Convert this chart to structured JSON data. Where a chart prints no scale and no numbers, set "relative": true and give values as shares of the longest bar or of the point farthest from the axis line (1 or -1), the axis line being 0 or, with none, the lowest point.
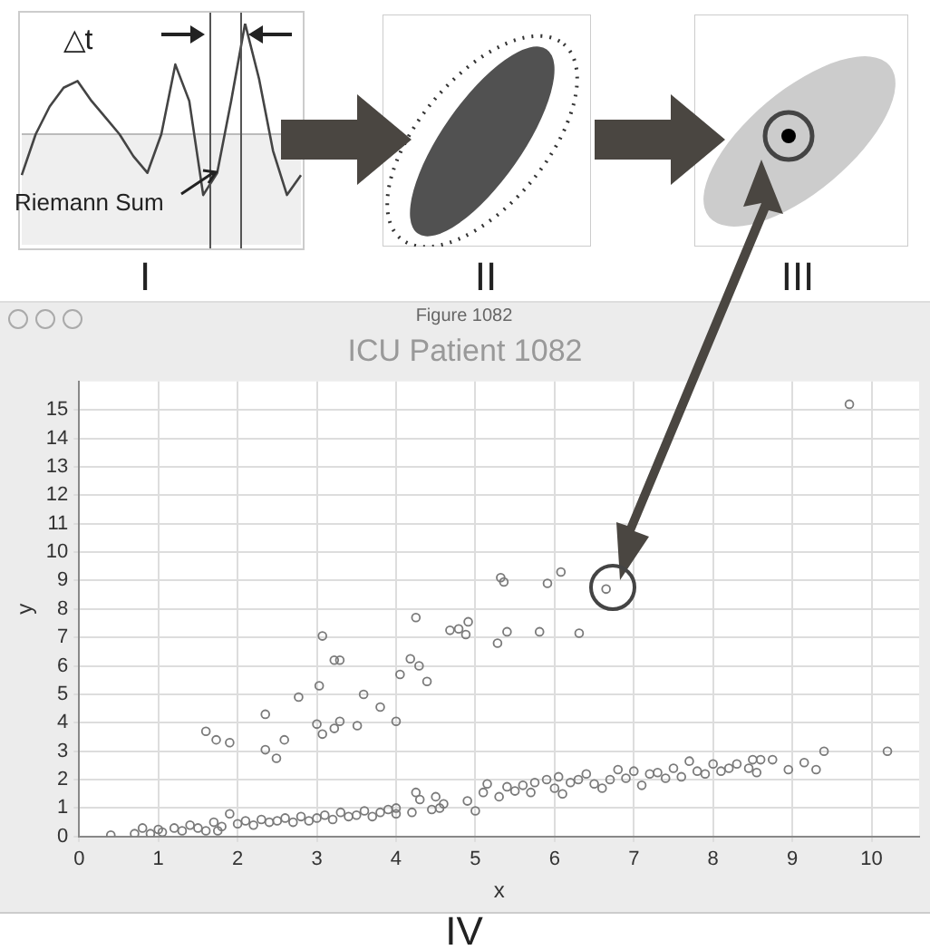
{
  "chart_data": [
    {
      "type": "line",
      "relative": true,
      "color": "#444444",
      "categories": [
        null,
        null,
        null,
        null,
        null,
        null,
        null,
        null,
        null,
        null,
        null,
        null,
        null,
        null,
        null,
        null,
        null,
        null,
        null,
        null,
        null
      ],
      "values": [
        -0.37,
        0.0,
        0.25,
        0.42,
        0.48,
        0.3,
        0.15,
        0.0,
        -0.2,
        -0.35,
        0.0,
        0.63,
        0.3,
        -0.55,
        -0.35,
        0.3,
        1.0,
        0.5,
        -0.15,
        -0.55,
        -0.37
      ],
      "annotations": [
        "△t",
        "Riemann Sum",
        "I"
      ]
    },
    {
      "type": "scatter",
      "title": "ICU Patient 1082",
      "xlabel": "x",
      "ylabel": "y",
      "xlim": [
        0,
        10.6
      ],
      "ylim": [
        0,
        16
      ],
      "xticks": [
        0,
        1,
        2,
        3,
        4,
        5,
        6,
        7,
        8,
        9,
        10
      ],
      "yticks": [
        0,
        1,
        2,
        3,
        4,
        5,
        6,
        7,
        8,
        9,
        10,
        11,
        12,
        13,
        14,
        15
      ],
      "grid": true,
      "marker": "circle",
      "legend": false,
      "annotations": [
        "II",
        "III",
        "IV",
        "Figure 1082"
      ],
      "series": [
        {
          "color": "#7a7a7a",
          "x": [
            1.6,
            1.73,
            1.9,
            2.35,
            2.35,
            2.49,
            2.59,
            2.77,
            3.0,
            3.03,
            3.07,
            3.07,
            3.22,
            3.29,
            3.22,
            3.29,
            3.51,
            3.59,
            3.8,
            4.0,
            4.05,
            4.18,
            4.29,
            4.39,
            4.25,
            4.68,
            4.79,
            4.91,
            4.88,
            5.28,
            5.4,
            5.81,
            6.31,
            5.32,
            5.36,
            5.91,
            6.08,
            6.65,
            9.72,
            0.4,
            0.7,
            0.8,
            0.9,
            1.0,
            1.05,
            1.2,
            1.3,
            1.4,
            1.5,
            1.6,
            1.7,
            1.75,
            1.8,
            1.9,
            2.0,
            2.1,
            2.2,
            2.3,
            2.4,
            2.5,
            2.6,
            2.7,
            2.8,
            2.9,
            3.0,
            3.1,
            3.2,
            3.3,
            3.4,
            3.5,
            3.6,
            3.7,
            3.8,
            3.9,
            4.0,
            4.0,
            4.2,
            4.25,
            4.3,
            4.45,
            4.5,
            4.55,
            4.6,
            4.9,
            5.0,
            5.1,
            5.15,
            5.3,
            5.4,
            5.5,
            5.6,
            5.7,
            5.75,
            5.9,
            6.0,
            6.05,
            6.1,
            6.2,
            6.3,
            6.4,
            6.5,
            6.6,
            6.7,
            6.8,
            6.9,
            7.0,
            7.1,
            7.2,
            7.3,
            7.4,
            7.5,
            7.6,
            7.7,
            7.8,
            7.9,
            8.0,
            8.1,
            8.2,
            8.3,
            8.45,
            8.5,
            8.55,
            8.6,
            8.75,
            8.95,
            9.15,
            9.3,
            9.4,
            10.2
          ],
          "values": [
            3.7,
            3.4,
            3.3,
            4.3,
            3.05,
            2.75,
            3.4,
            4.9,
            3.95,
            5.3,
            3.6,
            7.05,
            6.2,
            6.2,
            3.8,
            4.05,
            3.9,
            5.0,
            4.55,
            4.05,
            5.7,
            6.25,
            6.0,
            5.45,
            7.7,
            7.25,
            7.3,
            7.55,
            7.1,
            6.8,
            7.2,
            7.2,
            7.15,
            9.1,
            8.95,
            8.9,
            9.3,
            8.7,
            15.2,
            0.05,
            0.1,
            0.3,
            0.1,
            0.25,
            0.15,
            0.3,
            0.2,
            0.4,
            0.3,
            0.2,
            0.5,
            0.2,
            0.35,
            0.8,
            0.45,
            0.55,
            0.4,
            0.6,
            0.5,
            0.55,
            0.65,
            0.5,
            0.7,
            0.55,
            0.65,
            0.75,
            0.6,
            0.85,
            0.7,
            0.75,
            0.9,
            0.7,
            0.85,
            0.95,
            0.8,
            1.0,
            0.85,
            1.55,
            1.3,
            0.95,
            1.4,
            1.0,
            1.15,
            1.25,
            0.9,
            1.55,
            1.85,
            1.4,
            1.75,
            1.6,
            1.8,
            1.55,
            1.9,
            2.0,
            1.7,
            2.1,
            1.5,
            1.9,
            2.0,
            2.2,
            1.85,
            1.7,
            2.0,
            2.35,
            2.05,
            2.3,
            1.8,
            2.2,
            2.25,
            2.05,
            2.4,
            2.1,
            2.65,
            2.3,
            2.2,
            2.55,
            2.3,
            2.4,
            2.55,
            2.4,
            2.7,
            2.25,
            2.7,
            2.7,
            2.35,
            2.6,
            2.35,
            3.0,
            3.0
          ]
        }
      ]
    }
  ]
}
